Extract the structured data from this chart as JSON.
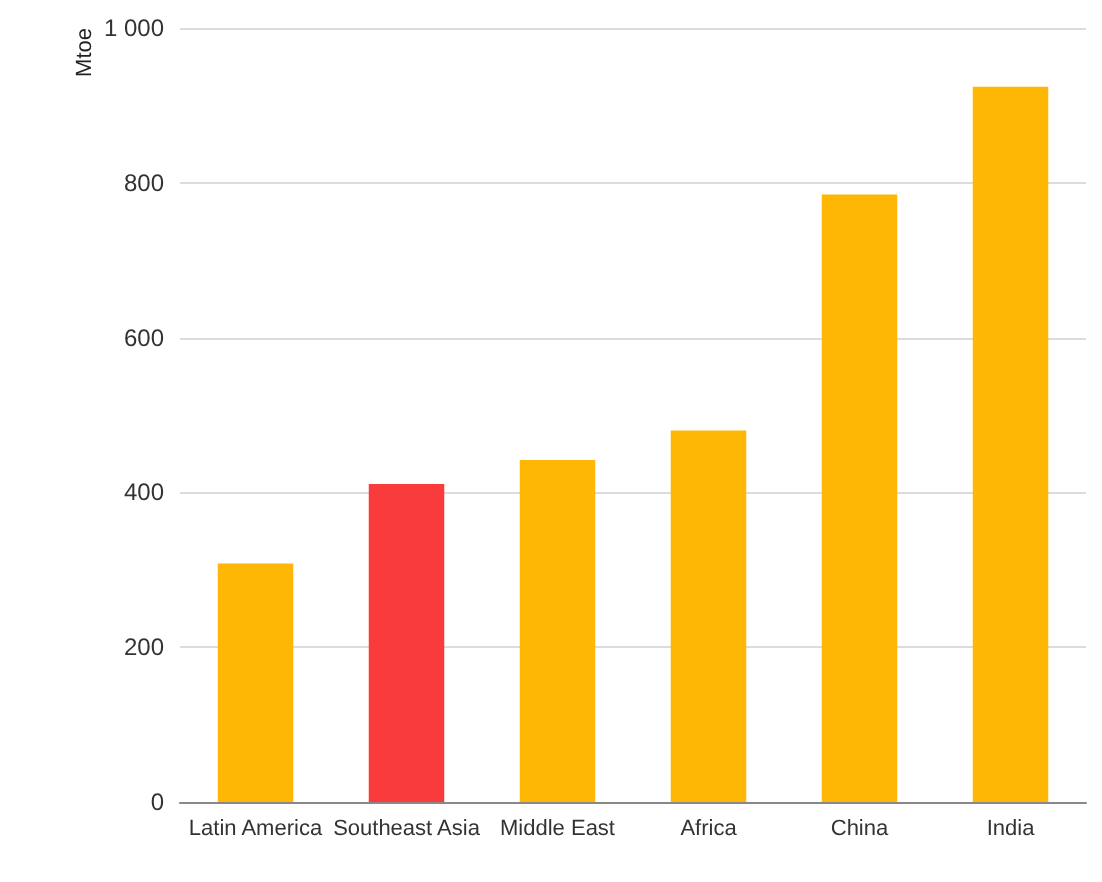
{
  "chart_data": {
    "type": "bar",
    "ylabel": "Mtoe",
    "categories": [
      "Latin America",
      "Southeast Asia",
      "Middle East",
      "Africa",
      "China",
      "India"
    ],
    "values": [
      308,
      411,
      442,
      480,
      785,
      924
    ],
    "colors": [
      "#fdb704",
      "#f93b3b",
      "#fdb704",
      "#fdb704",
      "#fdb704",
      "#fdb704"
    ],
    "ylim": [
      0,
      1000
    ],
    "yticks": [
      0,
      200,
      400,
      600,
      800,
      {
        "value": 1000,
        "label": "1 000"
      }
    ],
    "grid": "y"
  }
}
